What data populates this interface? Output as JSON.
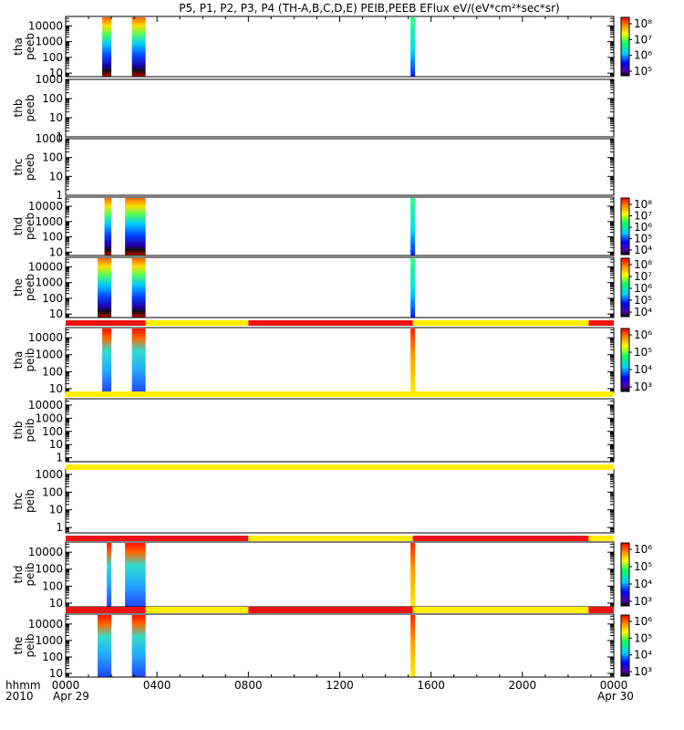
{
  "title": "P5, P1, P2, P3, P4 (TH-A,B,C,D,E) PEIB,PEEB EFlux eV/(eV*cm²*sec*sr)",
  "colors": {
    "bar_red": "#ee1111",
    "bar_yellow": "#ffee00",
    "frame": "#000000"
  },
  "xaxis": {
    "ticks": [
      "0000",
      "0400",
      "0800",
      "1200",
      "1600",
      "2000",
      "0000"
    ],
    "tick_hours": [
      0,
      4,
      8,
      12,
      16,
      20,
      24
    ],
    "date_start": "Apr 29",
    "date_end": "Apr 30",
    "label_hhmm": "hhmm",
    "label_year": "2010"
  },
  "chart_data": {
    "type": "heatmap",
    "x_unit": "hours since 2010-04-29 00:00 UT",
    "x_range": [
      0,
      24
    ],
    "y_scale": "log",
    "panels": [
      {
        "id": "tha-peeb",
        "label1": "tha",
        "label2": "peeb",
        "yticks": [
          "10000",
          "1000",
          "100",
          "10"
        ],
        "ylim": [
          6,
          40000
        ],
        "colorbar": {
          "ticks": [
            "10⁸",
            "10⁷",
            "10⁶",
            "10⁵"
          ]
        },
        "data_intervals_h": [
          [
            1.6,
            2.0
          ],
          [
            2.9,
            3.5
          ],
          [
            15.1,
            15.3
          ]
        ]
      },
      {
        "id": "thb-peeb",
        "label1": "thb",
        "label2": "peeb",
        "yticks": [
          "1000",
          "100",
          "10",
          "1"
        ],
        "ylim": [
          1,
          1000
        ],
        "data_intervals_h": []
      },
      {
        "id": "thc-peeb",
        "label1": "thc",
        "label2": "peeb",
        "yticks": [
          "1000",
          "100",
          "10",
          "1"
        ],
        "ylim": [
          1,
          1000
        ],
        "data_intervals_h": []
      },
      {
        "id": "thd-peeb",
        "label1": "thd",
        "label2": "peeb",
        "yticks": [
          "10000",
          "1000",
          "100",
          "10"
        ],
        "ylim": [
          6,
          40000
        ],
        "colorbar": {
          "ticks": [
            "10⁸",
            "10⁷",
            "10⁶",
            "10⁵",
            "10⁴"
          ]
        },
        "data_intervals_h": [
          [
            1.7,
            2.0
          ],
          [
            2.6,
            3.5
          ],
          [
            15.1,
            15.3
          ]
        ]
      },
      {
        "id": "the-peeb",
        "label1": "the",
        "label2": "peeb",
        "yticks": [
          "10000",
          "1000",
          "100",
          "10"
        ],
        "ylim": [
          6,
          40000
        ],
        "colorbar": {
          "ticks": [
            "10⁸",
            "10⁷",
            "10⁶",
            "10⁵",
            "10⁴"
          ]
        },
        "data_intervals_h": [
          [
            1.4,
            2.0
          ],
          [
            2.9,
            3.5
          ],
          [
            15.1,
            15.3
          ]
        ]
      },
      {
        "id": "tha-peib",
        "label1": "tha",
        "label2": "peib",
        "yticks": [
          "10000",
          "1000",
          "100",
          "10"
        ],
        "ylim": [
          6,
          40000
        ],
        "colorbar": {
          "ticks": [
            "10⁶",
            "10⁵",
            "10⁴",
            "10³"
          ]
        },
        "data_intervals_h": [
          [
            1.6,
            2.0
          ],
          [
            2.9,
            3.5
          ],
          [
            15.1,
            15.3
          ]
        ]
      },
      {
        "id": "thb-peib",
        "label1": "thb",
        "label2": "peib",
        "yticks": [
          "10000",
          "1000",
          "100",
          "10",
          "1"
        ],
        "ylim": [
          0.5,
          30000
        ],
        "data_intervals_h": []
      },
      {
        "id": "thc-peib",
        "label1": "thc",
        "label2": "peib",
        "yticks": [
          "1000",
          "100",
          "10",
          "1"
        ],
        "ylim": [
          0.5,
          2000
        ],
        "data_intervals_h": []
      },
      {
        "id": "thd-peib",
        "label1": "thd",
        "label2": "peib",
        "yticks": [
          "10000",
          "1000",
          "100",
          "10"
        ],
        "ylim": [
          6,
          40000
        ],
        "colorbar": {
          "ticks": [
            "10⁶",
            "10⁵",
            "10⁴",
            "10³"
          ]
        },
        "data_intervals_h": [
          [
            1.8,
            2.0
          ],
          [
            2.6,
            3.5
          ],
          [
            15.1,
            15.3
          ]
        ]
      },
      {
        "id": "the-peib",
        "label1": "the",
        "label2": "peib",
        "yticks": [
          "10000",
          "1000",
          "100",
          "10"
        ],
        "ylim": [
          6,
          40000
        ],
        "colorbar": {
          "ticks": [
            "10⁶",
            "10⁵",
            "10⁴",
            "10³"
          ]
        },
        "data_intervals_h": [
          [
            1.4,
            2.0
          ],
          [
            2.9,
            3.5
          ],
          [
            15.1,
            15.3
          ]
        ]
      }
    ],
    "mode_bars": [
      {
        "after_panel": "the-peeb",
        "segments": [
          [
            "red",
            0,
            3.5
          ],
          [
            "yellow",
            3.5,
            8.0
          ],
          [
            "red",
            8.0,
            15.2
          ],
          [
            "yellow",
            15.2,
            22.9
          ],
          [
            "red",
            22.9,
            24
          ]
        ]
      },
      {
        "after_panel": "tha-peib",
        "segments": [
          [
            "yellow",
            0,
            24
          ]
        ]
      },
      {
        "after_panel": "thb-peib",
        "segments": [
          [
            "yellow",
            0,
            24
          ]
        ]
      },
      {
        "after_panel": "thc-peib",
        "segments": [
          [
            "red",
            0,
            8.0
          ],
          [
            "yellow",
            8.0,
            15.2
          ],
          [
            "red",
            15.2,
            22.9
          ],
          [
            "yellow",
            22.9,
            24
          ]
        ]
      },
      {
        "after_panel": "thd-peib",
        "segments": [
          [
            "red",
            0,
            3.5
          ],
          [
            "yellow",
            3.5,
            8.0
          ],
          [
            "red",
            8.0,
            15.2
          ],
          [
            "yellow",
            15.2,
            22.9
          ],
          [
            "red",
            22.9,
            24
          ]
        ]
      }
    ]
  }
}
